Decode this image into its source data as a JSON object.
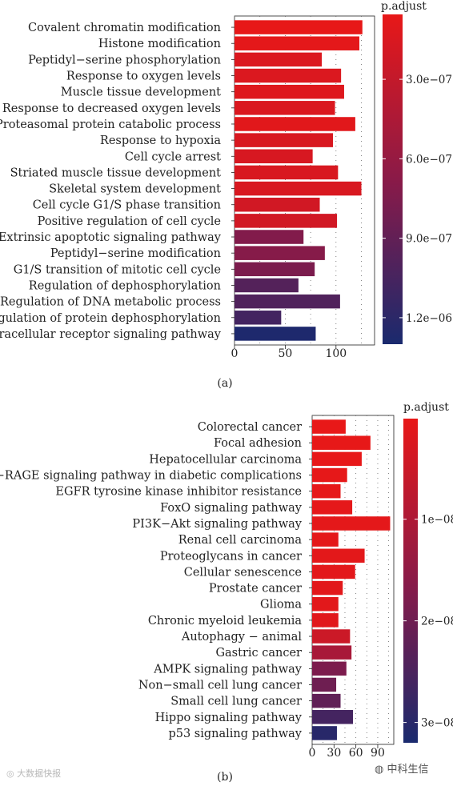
{
  "chart_data": [
    {
      "type": "bar",
      "orientation": "horizontal",
      "panel_label": "(a)",
      "categories": [
        "Covalent chromatin modification",
        "Histone modification",
        "Peptidyl−serine phosphorylation",
        "Response to oxygen levels",
        "Muscle tissue development",
        "Response to decreased oxygen levels",
        "Proteasomal protein catabolic process",
        "Response to hypoxia",
        "Cell cycle arrest",
        "Striated muscle tissue development",
        "Skeletal system development",
        "Cell cycle G1/S phase transition",
        "Positive regulation of cell cycle",
        "Extrinsic apoptotic signaling pathway",
        "Peptidyl−serine modification",
        "G1/S transition of mitotic cell cycle",
        "Regulation of dephosphorylation",
        "Regulation of DNA metabolic process",
        "Regulation of protein dephosphorylation",
        "Intracellular receptor signaling pathway"
      ],
      "values": [
        126,
        123,
        86,
        105,
        108,
        99,
        119,
        97,
        77,
        102,
        125,
        84,
        101,
        68,
        89,
        79,
        63,
        104,
        46,
        80
      ],
      "p_adjust": [
        6e-08,
        8e-08,
        1.4e-07,
        1.4e-07,
        1.2e-07,
        1.5e-07,
        1e-07,
        1.6e-07,
        1.7e-07,
        1.6e-07,
        1.6e-07,
        2.1e-07,
        2.1e-07,
        7.2e-07,
        7e-07,
        7.6e-07,
        9.8e-07,
        1e-06,
        1.07e-06,
        1.28e-06
      ],
      "xticks": [
        0,
        50,
        100
      ],
      "xlim": [
        0,
        138
      ],
      "grid": true,
      "colorbar": {
        "title": "p.adjust",
        "ticks": [
          3e-07,
          6e-07,
          9e-07,
          1.2e-06
        ],
        "tick_labels": [
          "3.0e−07",
          "6.0e−07",
          "9.0e−07",
          "1.2e−06"
        ],
        "range": [
          5.5e-08,
          1.3e-06
        ],
        "low_color": "#e81818",
        "high_color": "#1a2a6e"
      }
    },
    {
      "type": "bar",
      "orientation": "horizontal",
      "panel_label": "(b)",
      "categories": [
        "Colorectal cancer",
        "Focal adhesion",
        "Hepatocellular carcinoma",
        "AGE−RAGE signaling pathway in diabetic complications",
        "EGFR tyrosine kinase inhibitor resistance",
        "FoxO signaling pathway",
        "PI3K−Akt signaling pathway",
        "Renal cell carcinoma",
        "Proteoglycans in cancer",
        "Cellular senescence",
        "Prostate cancer",
        "Glioma",
        "Chronic myeloid leukemia",
        "Autophagy − animal",
        "Gastric cancer",
        "AMPK signaling pathway",
        "Non−small cell lung cancer",
        "Small cell lung cancer",
        "Hippo signaling pathway",
        "p53 signaling pathway"
      ],
      "values": [
        46,
        80,
        68,
        48,
        39,
        55,
        107,
        36,
        72,
        59,
        42,
        36,
        36,
        52,
        54,
        47,
        33,
        39,
        56,
        34
      ],
      "p_adjust": [
        1e-10,
        2e-10,
        3e-10,
        4e-10,
        5e-10,
        6e-10,
        7e-10,
        8e-10,
        9e-10,
        1e-09,
        1.1e-09,
        1.2e-09,
        1.3e-09,
        5e-09,
        1.1e-08,
        1.8e-08,
        2e-08,
        2.2e-08,
        2.6e-08,
        3e-08
      ],
      "xticks": [
        0,
        30,
        60,
        90
      ],
      "xlim": [
        0,
        112
      ],
      "grid": true,
      "colorbar": {
        "title": "p.adjust",
        "ticks": [
          1e-08,
          2e-08,
          3e-08
        ],
        "tick_labels": [
          "1e−08",
          "2e−08",
          "3e−08"
        ],
        "range": [
          1e-10,
          3.2e-08
        ],
        "low_color": "#e81818",
        "high_color": "#1a2a6e"
      }
    }
  ],
  "watermarks": {
    "left": "大数据快报",
    "right": "中科生信"
  }
}
